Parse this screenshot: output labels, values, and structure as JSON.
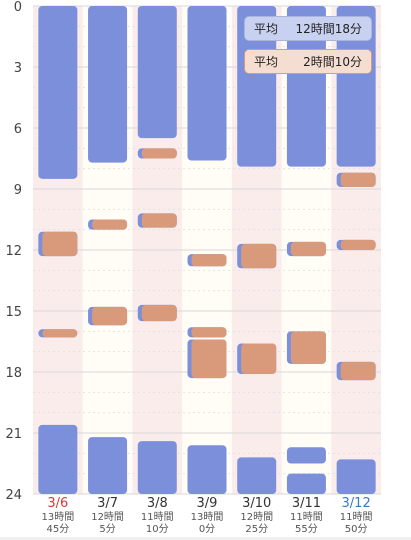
{
  "legend": {
    "average_sleep": {
      "label": "平均",
      "value": "12時間18分"
    },
    "average_awake": {
      "label": "平均",
      "value": "2時間10分"
    }
  },
  "chart_data": {
    "type": "bar",
    "orientation": "vertical-timeline",
    "y_axis": {
      "ticks": [
        "0",
        "3",
        "6",
        "9",
        "12",
        "15",
        "18",
        "21",
        "24"
      ],
      "range": [
        0,
        24
      ],
      "inverted": true
    },
    "columns": [
      {
        "date": "3/6",
        "date_color": "#d83a3a",
        "total_line1": "13時間",
        "total_line2": "45分",
        "shaded": true,
        "sleep": [
          [
            0,
            8.5
          ],
          [
            20.6,
            24
          ]
        ],
        "awake": [
          [
            11.1,
            12.3
          ],
          [
            15.9,
            16.3
          ]
        ]
      },
      {
        "date": "3/7",
        "date_color": "#333333",
        "total_line1": "12時間",
        "total_line2": "5分",
        "shaded": false,
        "sleep": [
          [
            0,
            7.7
          ],
          [
            21.2,
            24
          ]
        ],
        "awake": [
          [
            10.5,
            11.0
          ],
          [
            14.8,
            15.7
          ]
        ]
      },
      {
        "date": "3/8",
        "date_color": "#333333",
        "total_line1": "11時間",
        "total_line2": "10分",
        "shaded": true,
        "sleep": [
          [
            0,
            6.5
          ],
          [
            21.4,
            24
          ]
        ],
        "awake": [
          [
            7.0,
            7.5
          ],
          [
            10.2,
            10.9
          ],
          [
            14.7,
            15.5
          ]
        ]
      },
      {
        "date": "3/9",
        "date_color": "#333333",
        "total_line1": "13時間",
        "total_line2": "0分",
        "shaded": false,
        "sleep": [
          [
            0,
            7.6
          ],
          [
            21.6,
            24
          ]
        ],
        "awake": [
          [
            12.2,
            12.8
          ],
          [
            15.8,
            16.3
          ],
          [
            16.4,
            18.3
          ]
        ]
      },
      {
        "date": "3/10",
        "date_color": "#333333",
        "total_line1": "12時間",
        "total_line2": "25分",
        "shaded": true,
        "sleep": [
          [
            0,
            7.9
          ],
          [
            22.2,
            24
          ]
        ],
        "awake": [
          [
            11.7,
            12.9
          ],
          [
            16.6,
            18.1
          ]
        ]
      },
      {
        "date": "3/11",
        "date_color": "#333333",
        "total_line1": "11時間",
        "total_line2": "55分",
        "shaded": false,
        "sleep": [
          [
            0,
            7.9
          ],
          [
            21.7,
            22.5
          ],
          [
            23.0,
            24
          ]
        ],
        "awake": [
          [
            11.6,
            12.3
          ],
          [
            16.0,
            17.6
          ]
        ]
      },
      {
        "date": "3/12",
        "date_color": "#3a78d0",
        "total_line1": "11時間",
        "total_line2": "50分",
        "shaded": true,
        "sleep": [
          [
            0,
            7.9
          ],
          [
            22.3,
            24
          ]
        ],
        "awake": [
          [
            8.2,
            8.9
          ],
          [
            11.5,
            12.0
          ],
          [
            17.5,
            18.4
          ]
        ]
      }
    ]
  },
  "colors": {
    "sleep": "#7b8fdb",
    "awake": "#d89a7a",
    "column_shade": "#fbecec",
    "column_plain": "#fffdf6",
    "grid": "#d8d8d8",
    "grid_dotted": "#e2e2e2",
    "axis_text": "#444444"
  }
}
